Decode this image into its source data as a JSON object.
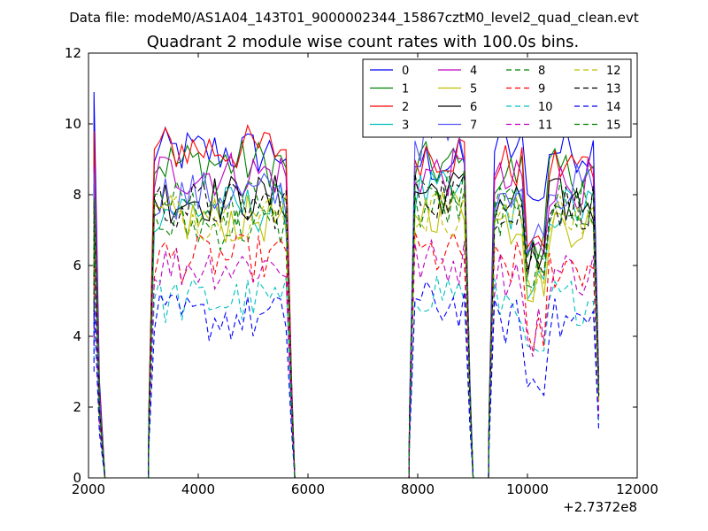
{
  "chart_data": {
    "type": "line",
    "suptitle": "Data file: modeM0/AS1A04_143T01_9000002344_15867cztM0_level2_quad_clean.evt",
    "title": "Quadrant 2 module wise count rates with 100.0s bins.",
    "xlabel": "",
    "ylabel": "",
    "x_offset_label": "+2.7372e8",
    "xlim": [
      2000,
      12000
    ],
    "ylim": [
      0,
      12
    ],
    "x_ticks": [
      2000,
      4000,
      6000,
      8000,
      10000,
      12000
    ],
    "y_ticks": [
      0,
      2,
      4,
      6,
      8,
      10,
      12
    ],
    "grid": false,
    "legend_position": "top-right",
    "legend_columns": 4,
    "segments": [
      {
        "start": 2100,
        "end": 2300
      },
      {
        "start": 3100,
        "end": 5700
      },
      {
        "start": 7850,
        "end": 8950
      },
      {
        "start": 9300,
        "end": 11350
      }
    ],
    "series": [
      {
        "name": "0",
        "color": "#0000ff",
        "dash": "solid",
        "levels": [
          10.9,
          9.2,
          8.9,
          9.3
        ]
      },
      {
        "name": "1",
        "color": "#008000",
        "dash": "solid",
        "levels": [
          9.5,
          8.9,
          8.8,
          8.6
        ]
      },
      {
        "name": "2",
        "color": "#ff0000",
        "dash": "solid",
        "levels": [
          9.8,
          9.3,
          9.2,
          8.8
        ]
      },
      {
        "name": "3",
        "color": "#00bfbf",
        "dash": "solid",
        "levels": [
          8.7,
          7.6,
          8.0,
          7.6
        ]
      },
      {
        "name": "4",
        "color": "#bf00bf",
        "dash": "solid",
        "levels": [
          8.8,
          8.6,
          8.6,
          8.3
        ]
      },
      {
        "name": "5",
        "color": "#bfbf00",
        "dash": "solid",
        "levels": [
          8.0,
          7.3,
          7.6,
          7.2
        ]
      },
      {
        "name": "6",
        "color": "#000000",
        "dash": "solid",
        "levels": [
          8.3,
          7.9,
          8.1,
          7.8
        ]
      },
      {
        "name": "7",
        "color": "#5555ff",
        "dash": "solid",
        "levels": [
          8.6,
          8.0,
          9.6,
          8.2
        ]
      },
      {
        "name": "8",
        "color": "#008000",
        "dash": "dashed",
        "levels": [
          7.2,
          7.1,
          7.6,
          7.5
        ]
      },
      {
        "name": "9",
        "color": "#ff0000",
        "dash": "dashed",
        "levels": [
          6.4,
          6.2,
          6.3,
          6.0
        ]
      },
      {
        "name": "10",
        "color": "#00bfbf",
        "dash": "dashed",
        "levels": [
          5.5,
          5.0,
          5.3,
          5.0
        ]
      },
      {
        "name": "11",
        "color": "#bf00bf",
        "dash": "dashed",
        "levels": [
          6.2,
          6.0,
          6.1,
          5.8
        ]
      },
      {
        "name": "12",
        "color": "#bfbf00",
        "dash": "dashed",
        "levels": [
          7.6,
          7.4,
          7.5,
          7.3
        ]
      },
      {
        "name": "13",
        "color": "#000000",
        "dash": "dashed",
        "levels": [
          7.8,
          7.7,
          8.0,
          7.7
        ]
      },
      {
        "name": "14",
        "color": "#0000ff",
        "dash": "dashed",
        "levels": [
          5.0,
          4.5,
          4.9,
          4.4
        ]
      },
      {
        "name": "15",
        "color": "#008000",
        "dash": "dashed",
        "levels": [
          7.9,
          7.8,
          8.1,
          7.8
        ]
      }
    ]
  }
}
